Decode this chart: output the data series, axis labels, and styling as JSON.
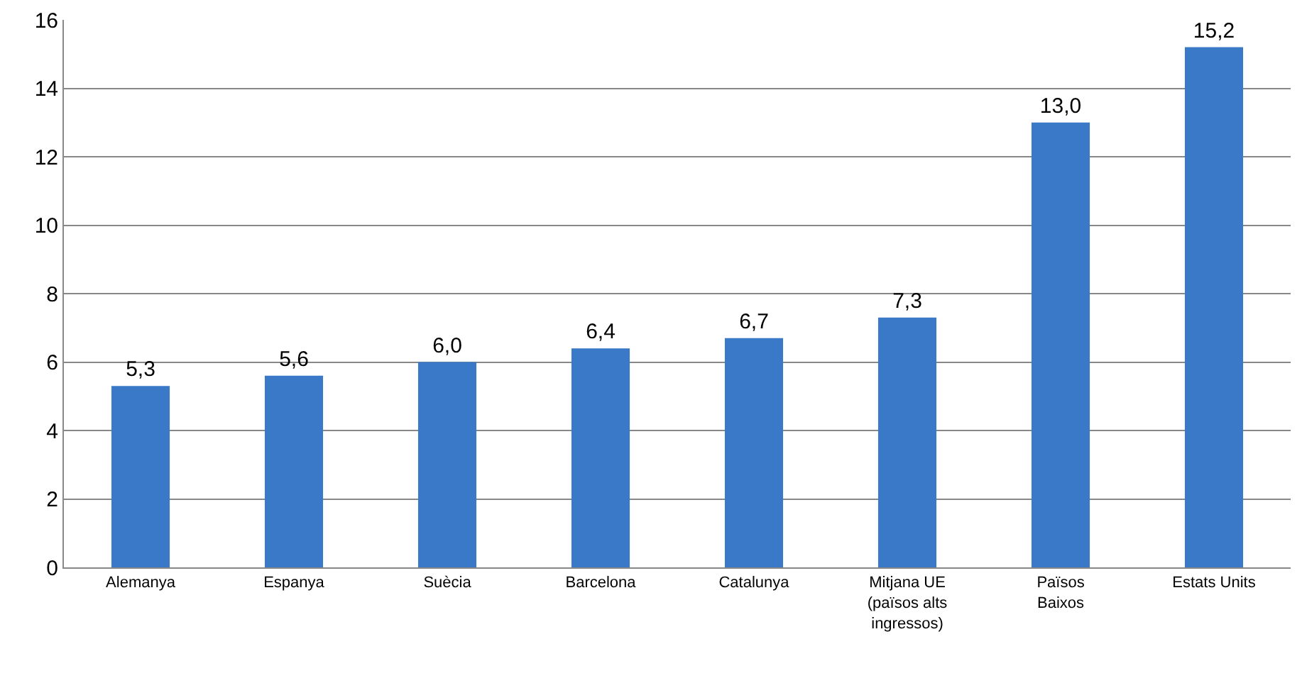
{
  "chart_data": {
    "type": "bar",
    "categories": [
      "Alemanya",
      "Espanya",
      "Suècia",
      "Barcelona",
      "Catalunya",
      "Mitjana UE (països alts ingressos)",
      "Països Baixos",
      "Estats Units"
    ],
    "values": [
      5.3,
      5.6,
      6.0,
      6.4,
      6.7,
      7.3,
      13.0,
      15.2
    ],
    "value_labels": [
      "5,3",
      "5,6",
      "6,0",
      "6,4",
      "6,7",
      "7,3",
      "13,0",
      "15,2"
    ],
    "color": "#3a78c8",
    "ylim": [
      0,
      16
    ],
    "yticks": [
      0,
      2,
      4,
      6,
      8,
      10,
      12,
      14,
      16
    ],
    "grid": "y",
    "legend": false
  }
}
